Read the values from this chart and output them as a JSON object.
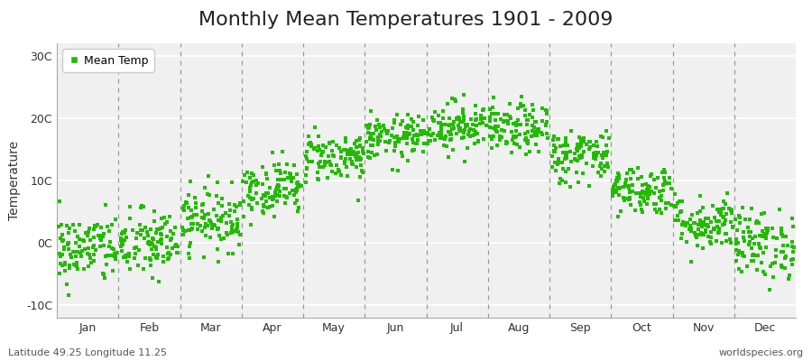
{
  "title": "Monthly Mean Temperatures 1901 - 2009",
  "ylabel": "Temperature",
  "dot_color": "#22bb00",
  "bg_color": "#ffffff",
  "plot_bg_color": "#f0f0f0",
  "ylim": [
    -12,
    32
  ],
  "yticks": [
    -10,
    0,
    10,
    20,
    30
  ],
  "ytick_labels": [
    "-10C",
    "0C",
    "10C",
    "20C",
    "30C"
  ],
  "months": [
    "Jan",
    "Feb",
    "Mar",
    "Apr",
    "May",
    "Jun",
    "Jul",
    "Aug",
    "Sep",
    "Oct",
    "Nov",
    "Dec"
  ],
  "mean_temps": [
    -1.0,
    -0.2,
    3.8,
    8.8,
    13.8,
    16.8,
    18.8,
    18.2,
    14.0,
    8.5,
    3.2,
    -0.2
  ],
  "temp_std": [
    2.8,
    2.8,
    2.5,
    2.2,
    2.0,
    1.8,
    2.0,
    2.0,
    2.2,
    2.0,
    2.2,
    2.8
  ],
  "n_years": 109,
  "legend_label": "Mean Temp",
  "footer_left": "Latitude 49.25 Longitude 11.25",
  "footer_right": "worldspecies.org",
  "title_fontsize": 16,
  "axis_fontsize": 10,
  "tick_fontsize": 9,
  "footer_fontsize": 8
}
